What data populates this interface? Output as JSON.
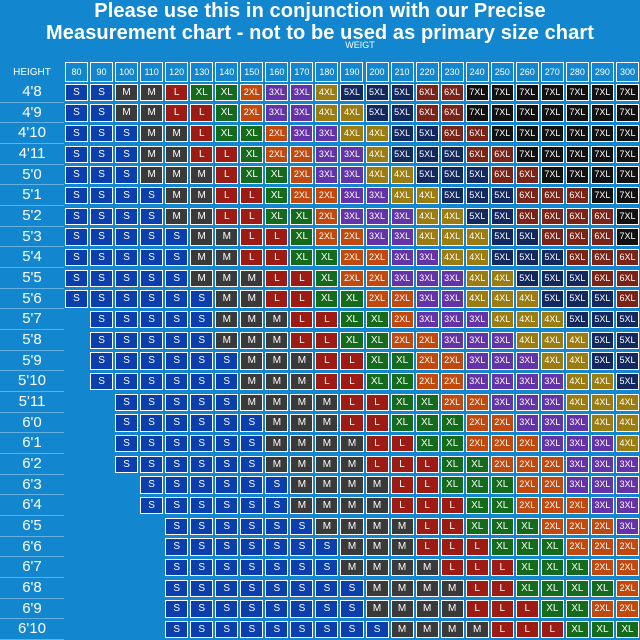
{
  "titles": {
    "line1": "Please use this in conjunction with our Precise",
    "line2": "Measurement chart - not to be used as primary size chart"
  },
  "colors": {
    "background": "#1287cf",
    "S": "#0b3fae",
    "M": "#3a3a3a",
    "L": "#9e1b14",
    "XL": "#136b1b",
    "2XL": "#c2490d",
    "3XL": "#6433a8",
    "4XL": "#9a7c10",
    "5XL": "#12285e",
    "6XL": "#7a2418",
    "7XL": "#111111"
  },
  "chart_data": {
    "type": "table",
    "xlabel": "WEIGT",
    "ylabel": "HEIGHT",
    "weights": [
      "80",
      "90",
      "100",
      "110",
      "120",
      "130",
      "140",
      "150",
      "160",
      "170",
      "180",
      "190",
      "200",
      "210",
      "220",
      "230",
      "240",
      "250",
      "260",
      "270",
      "280",
      "290",
      "300"
    ],
    "heights": [
      "4'8",
      "4'9",
      "4'10",
      "4'11",
      "5'0",
      "5'1",
      "5'2",
      "5'3",
      "5'4",
      "5'5",
      "5'6",
      "5'7",
      "5'8",
      "5'9",
      "5'10",
      "5'11",
      "6'0",
      "6'1",
      "6'2",
      "6'3",
      "6'4",
      "6'5",
      "6'6",
      "6'7",
      "6'8",
      "6'9",
      "6'10"
    ],
    "rows": [
      [
        "S",
        "S",
        "M",
        "M",
        "L",
        "XL",
        "XL",
        "2XL",
        "3XL",
        "3XL",
        "4XL",
        "5XL",
        "5XL",
        "5XL",
        "6XL",
        "6XL",
        "7XL",
        "7XL",
        "7XL",
        "7XL",
        "7XL",
        "7XL",
        "7XL"
      ],
      [
        "S",
        "S",
        "M",
        "M",
        "L",
        "L",
        "XL",
        "2XL",
        "3XL",
        "3XL",
        "4XL",
        "4XL",
        "5XL",
        "5XL",
        "6XL",
        "6XL",
        "7XL",
        "7XL",
        "7XL",
        "7XL",
        "7XL",
        "7XL",
        "7XL"
      ],
      [
        "S",
        "S",
        "S",
        "M",
        "M",
        "L",
        "XL",
        "XL",
        "2XL",
        "3XL",
        "3XL",
        "4XL",
        "4XL",
        "5XL",
        "5XL",
        "6XL",
        "6XL",
        "7XL",
        "7XL",
        "7XL",
        "7XL",
        "7XL",
        "7XL"
      ],
      [
        "S",
        "S",
        "S",
        "M",
        "M",
        "L",
        "L",
        "XL",
        "2XL",
        "2XL",
        "3XL",
        "3XL",
        "4XL",
        "5XL",
        "5XL",
        "5XL",
        "6XL",
        "6XL",
        "7XL",
        "7XL",
        "7XL",
        "7XL",
        "7XL"
      ],
      [
        "S",
        "S",
        "S",
        "M",
        "M",
        "M",
        "L",
        "XL",
        "XL",
        "2XL",
        "3XL",
        "3XL",
        "4XL",
        "4XL",
        "5XL",
        "5XL",
        "5XL",
        "6XL",
        "6XL",
        "7XL",
        "7XL",
        "7XL",
        "7XL"
      ],
      [
        "S",
        "S",
        "S",
        "S",
        "M",
        "M",
        "L",
        "L",
        "XL",
        "2XL",
        "2XL",
        "3XL",
        "3XL",
        "4XL",
        "4XL",
        "5XL",
        "5XL",
        "5XL",
        "6XL",
        "6XL",
        "6XL",
        "7XL",
        "7XL"
      ],
      [
        "S",
        "S",
        "S",
        "S",
        "M",
        "M",
        "L",
        "L",
        "XL",
        "XL",
        "2XL",
        "3XL",
        "3XL",
        "3XL",
        "4XL",
        "4XL",
        "5XL",
        "5XL",
        "6XL",
        "6XL",
        "6XL",
        "6XL",
        "7XL"
      ],
      [
        "S",
        "S",
        "S",
        "S",
        "S",
        "M",
        "M",
        "L",
        "L",
        "XL",
        "2XL",
        "2XL",
        "3XL",
        "3XL",
        "4XL",
        "4XL",
        "4XL",
        "5XL",
        "5XL",
        "6XL",
        "6XL",
        "6XL",
        "7XL"
      ],
      [
        "S",
        "S",
        "S",
        "S",
        "S",
        "M",
        "M",
        "L",
        "L",
        "XL",
        "XL",
        "2XL",
        "2XL",
        "3XL",
        "3XL",
        "4XL",
        "4XL",
        "5XL",
        "5XL",
        "5XL",
        "6XL",
        "6XL",
        "6XL"
      ],
      [
        "S",
        "S",
        "S",
        "S",
        "S",
        "M",
        "M",
        "M",
        "L",
        "L",
        "XL",
        "2XL",
        "2XL",
        "3XL",
        "3XL",
        "3XL",
        "4XL",
        "4XL",
        "5XL",
        "5XL",
        "5XL",
        "6XL",
        "6XL"
      ],
      [
        "S",
        "S",
        "S",
        "S",
        "S",
        "S",
        "M",
        "M",
        "L",
        "L",
        "XL",
        "XL",
        "2XL",
        "2XL",
        "3XL",
        "3XL",
        "4XL",
        "4XL",
        "4XL",
        "5XL",
        "5XL",
        "5XL",
        "6XL"
      ],
      [
        "",
        "S",
        "S",
        "S",
        "S",
        "S",
        "M",
        "M",
        "M",
        "L",
        "L",
        "XL",
        "XL",
        "2XL",
        "3XL",
        "3XL",
        "3XL",
        "4XL",
        "4XL",
        "4XL",
        "5XL",
        "5XL",
        "5XL"
      ],
      [
        "",
        "S",
        "S",
        "S",
        "S",
        "S",
        "M",
        "M",
        "M",
        "L",
        "L",
        "XL",
        "XL",
        "2XL",
        "2XL",
        "3XL",
        "3XL",
        "3XL",
        "4XL",
        "4XL",
        "4XL",
        "5XL",
        "5XL"
      ],
      [
        "",
        "S",
        "S",
        "S",
        "S",
        "S",
        "S",
        "M",
        "M",
        "M",
        "L",
        "L",
        "XL",
        "XL",
        "2XL",
        "2XL",
        "3XL",
        "3XL",
        "3XL",
        "4XL",
        "4XL",
        "5XL",
        "5XL"
      ],
      [
        "",
        "S",
        "S",
        "S",
        "S",
        "S",
        "S",
        "M",
        "M",
        "M",
        "L",
        "L",
        "XL",
        "XL",
        "2XL",
        "2XL",
        "3XL",
        "3XL",
        "3XL",
        "3XL",
        "4XL",
        "4XL",
        "5XL"
      ],
      [
        "",
        "",
        "S",
        "S",
        "S",
        "S",
        "S",
        "M",
        "M",
        "M",
        "M",
        "L",
        "L",
        "XL",
        "XL",
        "2XL",
        "2XL",
        "3XL",
        "3XL",
        "3XL",
        "4XL",
        "4XL",
        "4XL"
      ],
      [
        "",
        "",
        "S",
        "S",
        "S",
        "S",
        "S",
        "S",
        "M",
        "M",
        "M",
        "L",
        "L",
        "XL",
        "XL",
        "XL",
        "2XL",
        "2XL",
        "3XL",
        "3XL",
        "3XL",
        "4XL",
        "4XL"
      ],
      [
        "",
        "",
        "S",
        "S",
        "S",
        "S",
        "S",
        "S",
        "M",
        "M",
        "M",
        "M",
        "L",
        "L",
        "XL",
        "XL",
        "2XL",
        "2XL",
        "2XL",
        "3XL",
        "3XL",
        "3XL",
        "4XL"
      ],
      [
        "",
        "",
        "S",
        "S",
        "S",
        "S",
        "S",
        "S",
        "M",
        "M",
        "M",
        "M",
        "L",
        "L",
        "L",
        "XL",
        "XL",
        "2XL",
        "2XL",
        "2XL",
        "3XL",
        "3XL",
        "3XL"
      ],
      [
        "",
        "",
        "",
        "S",
        "S",
        "S",
        "S",
        "S",
        "S",
        "M",
        "M",
        "M",
        "M",
        "L",
        "L",
        "XL",
        "XL",
        "XL",
        "2XL",
        "2XL",
        "3XL",
        "3XL",
        "3XL"
      ],
      [
        "",
        "",
        "",
        "S",
        "S",
        "S",
        "S",
        "S",
        "S",
        "M",
        "M",
        "M",
        "M",
        "L",
        "L",
        "L",
        "XL",
        "XL",
        "2XL",
        "2XL",
        "2XL",
        "3XL",
        "3XL"
      ],
      [
        "",
        "",
        "",
        "",
        "S",
        "S",
        "S",
        "S",
        "S",
        "S",
        "M",
        "M",
        "M",
        "M",
        "L",
        "L",
        "XL",
        "XL",
        "XL",
        "2XL",
        "2XL",
        "2XL",
        "3XL"
      ],
      [
        "",
        "",
        "",
        "",
        "S",
        "S",
        "S",
        "S",
        "S",
        "S",
        "S",
        "M",
        "M",
        "M",
        "L",
        "L",
        "L",
        "XL",
        "XL",
        "XL",
        "2XL",
        "2XL",
        "2XL"
      ],
      [
        "",
        "",
        "",
        "",
        "S",
        "S",
        "S",
        "S",
        "S",
        "S",
        "S",
        "M",
        "M",
        "M",
        "M",
        "L",
        "L",
        "L",
        "XL",
        "XL",
        "XL",
        "2XL",
        "2XL"
      ],
      [
        "",
        "",
        "",
        "",
        "S",
        "S",
        "S",
        "S",
        "S",
        "S",
        "S",
        "S",
        "M",
        "M",
        "M",
        "M",
        "L",
        "L",
        "XL",
        "XL",
        "XL",
        "XL",
        "2XL"
      ],
      [
        "",
        "",
        "",
        "",
        "S",
        "S",
        "S",
        "S",
        "S",
        "S",
        "S",
        "S",
        "M",
        "M",
        "M",
        "M",
        "L",
        "L",
        "L",
        "XL",
        "XL",
        "2XL",
        "2XL"
      ],
      [
        "",
        "",
        "",
        "",
        "S",
        "S",
        "S",
        "S",
        "S",
        "S",
        "S",
        "S",
        "S",
        "M",
        "M",
        "M",
        "M",
        "L",
        "L",
        "L",
        "XL",
        "XL",
        "XL"
      ]
    ]
  }
}
